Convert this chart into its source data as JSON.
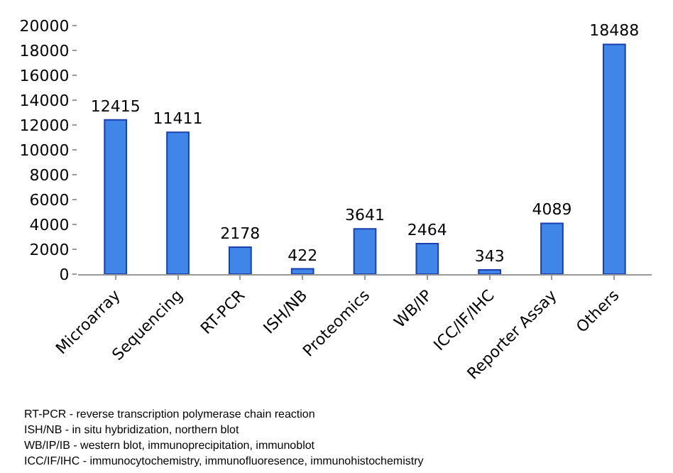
{
  "chart_data": {
    "type": "bar",
    "categories": [
      "Microarray",
      "Sequencing",
      "RT-PCR",
      "ISH/NB",
      "Proteomics",
      "WB/IP",
      "ICC/IF/IHC",
      "Reporter Assay",
      "Others"
    ],
    "values": [
      12415,
      11411,
      2178,
      422,
      3641,
      2464,
      343,
      4089,
      18488
    ],
    "color": "#3f86e8",
    "ylim": [
      0,
      20000
    ],
    "yticks": [
      0,
      2000,
      4000,
      6000,
      8000,
      10000,
      12000,
      14000,
      16000,
      18000,
      20000
    ],
    "grid": false,
    "data_labels": true,
    "annotations": [
      "RT-PCR - reverse transcription polymerase chain reaction",
      "ISH/NB - in situ hybridization, northern blot",
      "WB/IP/IB - western blot, immunoprecipitation, immunoblot",
      "ICC/IF/IHC - immunocytochemistry, immunofluoresence, immunohistochemistry"
    ]
  }
}
